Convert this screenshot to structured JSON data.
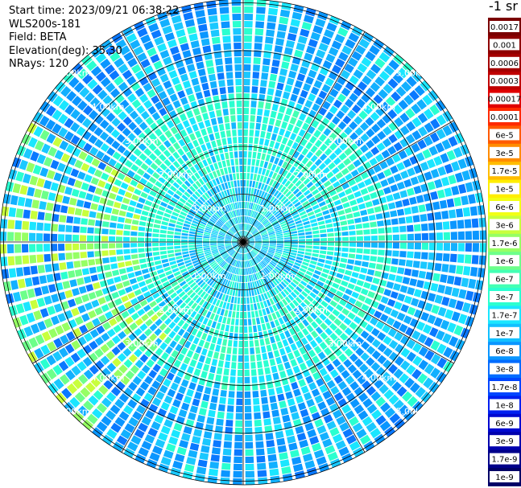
{
  "header": {
    "start_time": "Start time: 2023/09/21 06:38:22",
    "device": "WLS200s-181",
    "field": "Field: BETA",
    "elevation": "Elevation(deg): 35.30",
    "nrays": "NRays: 120"
  },
  "colorbar": {
    "unit": "-1 sr",
    "labels": [
      "0.0017",
      "0.001",
      "0.0006",
      "0.0003",
      "0.00017",
      "0.0001",
      "6e-5",
      "3e-5",
      "1.7e-5",
      "1e-5",
      "6e-6",
      "3e-6",
      "1.7e-6",
      "1e-6",
      "6e-7",
      "3e-7",
      "1.7e-7",
      "1e-7",
      "6e-8",
      "3e-8",
      "1.7e-8",
      "1e-8",
      "6e-9",
      "3e-9",
      "1.7e-9",
      "1e-9"
    ],
    "colors": [
      "#7a0000",
      "#8e0000",
      "#a40000",
      "#c00000",
      "#e00000",
      "#ff2a00",
      "#ff5a00",
      "#ff8c00",
      "#ffbd00",
      "#ffee00",
      "#f2ff14",
      "#c8ff3c",
      "#96ff64",
      "#6dff8a",
      "#43ffb4",
      "#2affd0",
      "#1ae6ff",
      "#12c0ff",
      "#0a96ff",
      "#006cff",
      "#0046ff",
      "#0020f0",
      "#0008d0",
      "#0000ad",
      "#00008a",
      "#000066"
    ]
  },
  "chart_data": {
    "type": "heatmap",
    "projection": "polar-ppi",
    "field": "BETA",
    "n_rays": 120,
    "elevation_deg": 35.3,
    "range_rings_km": [
      1.0,
      2.0,
      3.0,
      4.0,
      5.0
    ],
    "ring_labels": [
      "1.00km",
      "2.00km",
      "3.00km",
      "4.00km",
      "5.00km"
    ],
    "radial_spokes_deg": [
      0,
      30,
      60,
      90,
      120,
      150,
      180,
      210,
      240,
      270,
      300,
      330
    ],
    "max_range_km": 5.5
  }
}
